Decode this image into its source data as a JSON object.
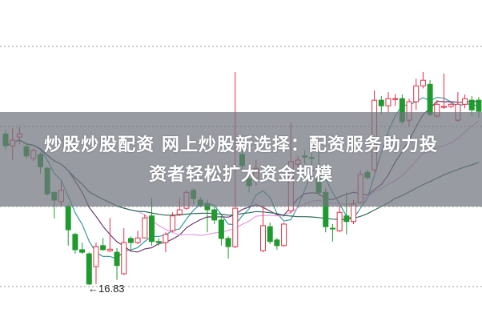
{
  "headline": {
    "line1": "炒股炒股配资 网上炒股新选择：配资服务助力投",
    "line2": "资者轻松扩大资金规模"
  },
  "chart_data": {
    "type": "candlestick",
    "title": "",
    "xlabel": "",
    "ylabel": "",
    "ylim": [
      16.8,
      21.49
    ],
    "grid": "horizontal dotted",
    "up_color": "#e0304a",
    "down_color": "#1f9a2e",
    "low_annotation": {
      "text": "←16.83",
      "value": 16.83,
      "index": 12
    },
    "moving_averages": [
      {
        "period": 5,
        "color": "#3a9aa0"
      },
      {
        "period": 10,
        "color": "#6a3a6e"
      },
      {
        "period": 20,
        "color": "#e6a0e0"
      },
      {
        "period": 40,
        "color": "#2e6a5a"
      }
    ],
    "candles": [
      [
        19.78,
        19.85,
        19.47,
        19.55
      ],
      [
        19.55,
        19.89,
        19.27,
        19.66
      ],
      [
        19.72,
        19.92,
        19.58,
        19.78
      ],
      [
        19.53,
        19.6,
        19.3,
        19.35
      ],
      [
        19.3,
        19.5,
        19.25,
        19.46
      ],
      [
        19.38,
        19.42,
        19.0,
        19.14
      ],
      [
        19.11,
        19.14,
        18.58,
        18.61
      ],
      [
        18.64,
        18.66,
        18.13,
        18.49
      ],
      [
        18.46,
        18.85,
        18.38,
        18.68
      ],
      [
        18.36,
        18.4,
        17.6,
        17.91
      ],
      [
        17.82,
        17.85,
        17.44,
        17.52
      ],
      [
        17.52,
        17.66,
        17.44,
        17.47
      ],
      [
        17.44,
        17.47,
        16.83,
        16.85
      ],
      [
        17.19,
        17.66,
        16.85,
        17.58
      ],
      [
        17.6,
        17.75,
        17.5,
        17.52
      ],
      [
        17.5,
        18.14,
        17.47,
        17.53
      ],
      [
        17.47,
        17.55,
        16.93,
        17.21
      ],
      [
        17.05,
        17.94,
        17.03,
        17.66
      ],
      [
        17.74,
        17.78,
        17.5,
        17.66
      ],
      [
        17.66,
        17.89,
        17.63,
        17.75
      ],
      [
        17.75,
        18.21,
        17.74,
        18.14
      ],
      [
        18.18,
        18.53,
        17.6,
        17.68
      ],
      [
        17.68,
        17.74,
        17.6,
        17.66
      ],
      [
        17.66,
        17.86,
        17.47,
        17.82
      ],
      [
        17.89,
        18.25,
        17.86,
        18.18
      ],
      [
        18.21,
        18.53,
        18.18,
        18.3
      ],
      [
        18.33,
        18.68,
        18.3,
        18.64
      ],
      [
        18.68,
        18.72,
        18.41,
        18.52
      ],
      [
        18.49,
        18.55,
        18.35,
        18.38
      ],
      [
        18.41,
        18.49,
        17.86,
        18.3
      ],
      [
        18.3,
        18.36,
        18.02,
        18.1
      ],
      [
        18.1,
        18.18,
        17.6,
        17.74
      ],
      [
        17.74,
        17.78,
        17.35,
        17.58
      ],
      [
        17.58,
        20.99,
        17.55,
        18.33
      ],
      [
        19.38,
        19.5,
        19.03,
        19.16
      ],
      [
        18.91,
        19.03,
        18.64,
        18.77
      ],
      [
        18.91,
        19.27,
        18.77,
        19.11
      ],
      [
        17.5,
        18.39,
        17.47,
        17.99
      ],
      [
        17.97,
        18.05,
        17.63,
        17.68
      ],
      [
        17.71,
        17.75,
        17.52,
        17.6
      ],
      [
        17.6,
        18.05,
        17.58,
        18.02
      ],
      [
        18.28,
        20.0,
        18.22,
        19.24
      ],
      [
        19.19,
        19.35,
        19.03,
        19.27
      ],
      [
        19.35,
        19.46,
        19.19,
        19.33
      ],
      [
        19.32,
        19.43,
        19.11,
        19.31
      ],
      [
        19.0,
        19.5,
        18.57,
        18.64
      ],
      [
        18.64,
        18.72,
        17.86,
        17.97
      ],
      [
        17.94,
        18.02,
        17.68,
        17.93
      ],
      [
        17.89,
        18.38,
        17.86,
        18.25
      ],
      [
        18.18,
        18.64,
        17.82,
        18.07
      ],
      [
        18.07,
        18.49,
        18.02,
        18.41
      ],
      [
        18.44,
        19.07,
        18.41,
        18.99
      ],
      [
        19.03,
        19.08,
        18.88,
        18.93
      ],
      [
        19.08,
        20.63,
        19.03,
        20.44
      ],
      [
        20.44,
        20.52,
        20.17,
        20.33
      ],
      [
        20.33,
        20.6,
        20.2,
        20.47
      ],
      [
        20.46,
        20.56,
        20.33,
        20.47
      ],
      [
        20.47,
        20.55,
        19.97,
        20.02
      ],
      [
        20.05,
        20.47,
        19.93,
        20.41
      ],
      [
        20.41,
        20.86,
        20.25,
        20.72
      ],
      [
        20.72,
        20.99,
        20.67,
        20.83
      ],
      [
        20.75,
        20.83,
        20.13,
        20.16
      ],
      [
        20.13,
        20.44,
        20.1,
        20.36
      ],
      [
        20.3,
        20.96,
        20.27,
        20.32
      ],
      [
        20.32,
        20.4,
        20.28,
        20.36
      ],
      [
        20.05,
        20.6,
        20.02,
        20.36
      ],
      [
        20.36,
        20.55,
        20.28,
        20.47
      ],
      [
        20.44,
        20.52,
        20.13,
        20.25
      ],
      [
        20.44,
        20.5,
        20.1,
        20.22
      ]
    ]
  }
}
